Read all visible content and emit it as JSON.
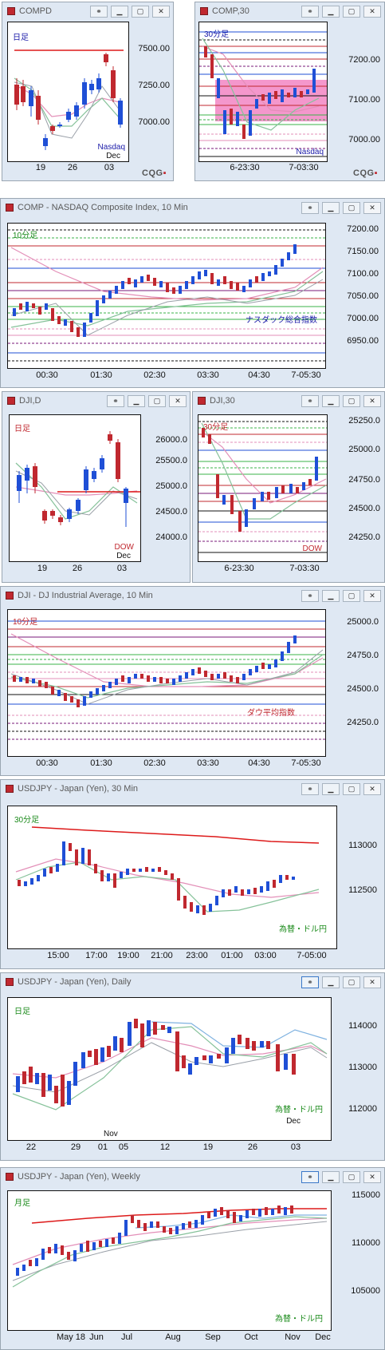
{
  "colors": {
    "up": "#1f4fd6",
    "down": "#c0282f",
    "accent": "#1a1aa8",
    "ma_red": "#dd1a1a",
    "ma_pink": "#e38fb8",
    "ma_green": "#86c29a",
    "ma_gray": "#9aa0a8",
    "hl_pink": "#ee5fb1"
  },
  "icons": {
    "link": "link-icon",
    "minimize": "minimize-icon",
    "maximize": "maximize-icon",
    "close": "close-icon"
  },
  "windows": [
    {
      "title": "COMPD",
      "label": "日足",
      "label_color": "#1a1aa8",
      "note": "Nasdaq",
      "note2": "Dec",
      "note_color": "#1a1aa8",
      "y_labels": [
        "7500.00",
        "7250.00",
        "7000.00"
      ],
      "x_labels": [
        "19",
        "26",
        "03"
      ],
      "cqg": "CQG"
    },
    {
      "title": "COMP,30",
      "label": "30分足",
      "label_color": "#1a1aa8",
      "note": "Nasdaq",
      "note2": "",
      "note_color": "#1a1aa8",
      "y_labels": [
        "7200.00",
        "7100.00",
        "7000.00"
      ],
      "x_labels": [
        "6-23:30",
        "7-03:30"
      ],
      "cqg": "CQG"
    },
    {
      "title": "COMP - NASDAQ Composite Index, 10 Min",
      "label": "10分足",
      "label_color": "#1a8a1a",
      "note": "ナスダック総合指数",
      "note2": "",
      "note_color": "#1a1aa8",
      "y_labels": [
        "7200.00",
        "7150.00",
        "7100.00",
        "7050.00",
        "7000.00",
        "6950.00"
      ],
      "x_labels": [
        "00:30",
        "01:30",
        "02:30",
        "03:30",
        "04:30",
        "7-05:30"
      ]
    },
    {
      "title": "DJI,D",
      "label": "日足",
      "label_color": "#c0282f",
      "note": "DOW",
      "note2": "Dec",
      "note_color": "#c0282f",
      "y_labels": [
        "26000.0",
        "25500.0",
        "25000.0",
        "24500.0",
        "24000.0"
      ],
      "x_labels": [
        "19",
        "26",
        "03"
      ]
    },
    {
      "title": "DJI,30",
      "label": "30分足",
      "label_color": "#c0282f",
      "note": "DOW",
      "note2": "",
      "note_color": "#c0282f",
      "y_labels": [
        "25250.0",
        "25000.0",
        "24750.0",
        "24500.0",
        "24250.0"
      ],
      "x_labels": [
        "6-23:30",
        "7-03:30"
      ]
    },
    {
      "title": "DJI - DJ Industrial Average, 10 Min",
      "label": "10分足",
      "label_color": "#c0282f",
      "note": "ダウ平均指数",
      "note2": "",
      "note_color": "#c0282f",
      "y_labels": [
        "25000.0",
        "24750.0",
        "24500.0",
        "24250.0"
      ],
      "x_labels": [
        "00:30",
        "01:30",
        "02:30",
        "03:30",
        "04:30",
        "7-05:30"
      ]
    },
    {
      "title": "USDJPY - Japan (Yen), 30 Min",
      "label": "30分足",
      "label_color": "#1a8a1a",
      "note": "為替・ドル円",
      "note2": "",
      "note_color": "#1a8a1a",
      "y_labels": [
        "113000",
        "112500"
      ],
      "x_labels": [
        "15:00",
        "17:00",
        "19:00",
        "21:00",
        "23:00",
        "01:00",
        "03:00",
        "7-05:00"
      ]
    },
    {
      "title": "USDJPY - Japan (Yen), Daily",
      "label": "日足",
      "label_color": "#1a8a1a",
      "note": "為替・ドル円",
      "note2": "Dec",
      "note_color": "#1a8a1a",
      "y_labels": [
        "114000",
        "113000",
        "112000"
      ],
      "x_labels": [
        "22",
        "29",
        "01",
        "05",
        "12",
        "19",
        "26",
        "03"
      ],
      "x_sub": "Nov"
    },
    {
      "title": "USDJPY - Japan (Yen), Weekly",
      "label": "月足",
      "label_color": "#1a8a1a",
      "note": "為替・ドル円",
      "note2": "",
      "note_color": "#1a8a1a",
      "y_labels": [
        "115000",
        "110000",
        "105000"
      ],
      "x_labels": [
        "May 18",
        "Jun",
        "Jul",
        "Aug",
        "Sep",
        "Oct",
        "Nov",
        "Dec"
      ]
    }
  ]
}
